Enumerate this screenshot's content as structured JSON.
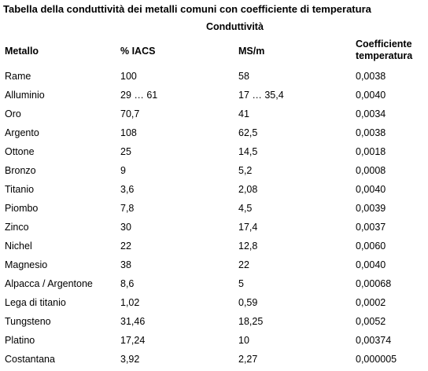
{
  "title": "Tabella della conduttività dei metalli comuni con coefficiente di temperatura",
  "group_header": "Conduttività",
  "table": {
    "headers": [
      "Metallo",
      "% IACS",
      "MS/m",
      "Coefficiente temperatura"
    ],
    "rows": [
      [
        "Rame",
        "100",
        "58",
        "0,0038"
      ],
      [
        "Alluminio",
        "29 … 61",
        "17 … 35,4",
        "0,0040"
      ],
      [
        "Oro",
        "70,7",
        "41",
        "0,0034"
      ],
      [
        "Argento",
        "108",
        "62,5",
        "0,0038"
      ],
      [
        "Ottone",
        "25",
        "14,5",
        "0,0018"
      ],
      [
        "Bronzo",
        "9",
        "5,2",
        "0,0008"
      ],
      [
        "Titanio",
        "3,6",
        "2,08",
        "0,0040"
      ],
      [
        "Piombo",
        "7,8",
        "4,5",
        "0,0039"
      ],
      [
        "Zinco",
        "30",
        "17,4",
        "0,0037"
      ],
      [
        "Nichel",
        "22",
        "12,8",
        "0,0060"
      ],
      [
        "Magnesio",
        "38",
        "22",
        "0,0040"
      ],
      [
        "Alpacca / Argentone",
        "8,6",
        "5",
        "0,00068"
      ],
      [
        "Lega di titanio",
        "1,02",
        "0,59",
        "0,0002"
      ],
      [
        "Tungsteno",
        "31,46",
        "18,25",
        "0,0052"
      ],
      [
        "Platino",
        "17,24",
        "10",
        "0,00374"
      ],
      [
        "Costantana",
        "3,92",
        "2,27",
        "0,000005"
      ]
    ]
  }
}
